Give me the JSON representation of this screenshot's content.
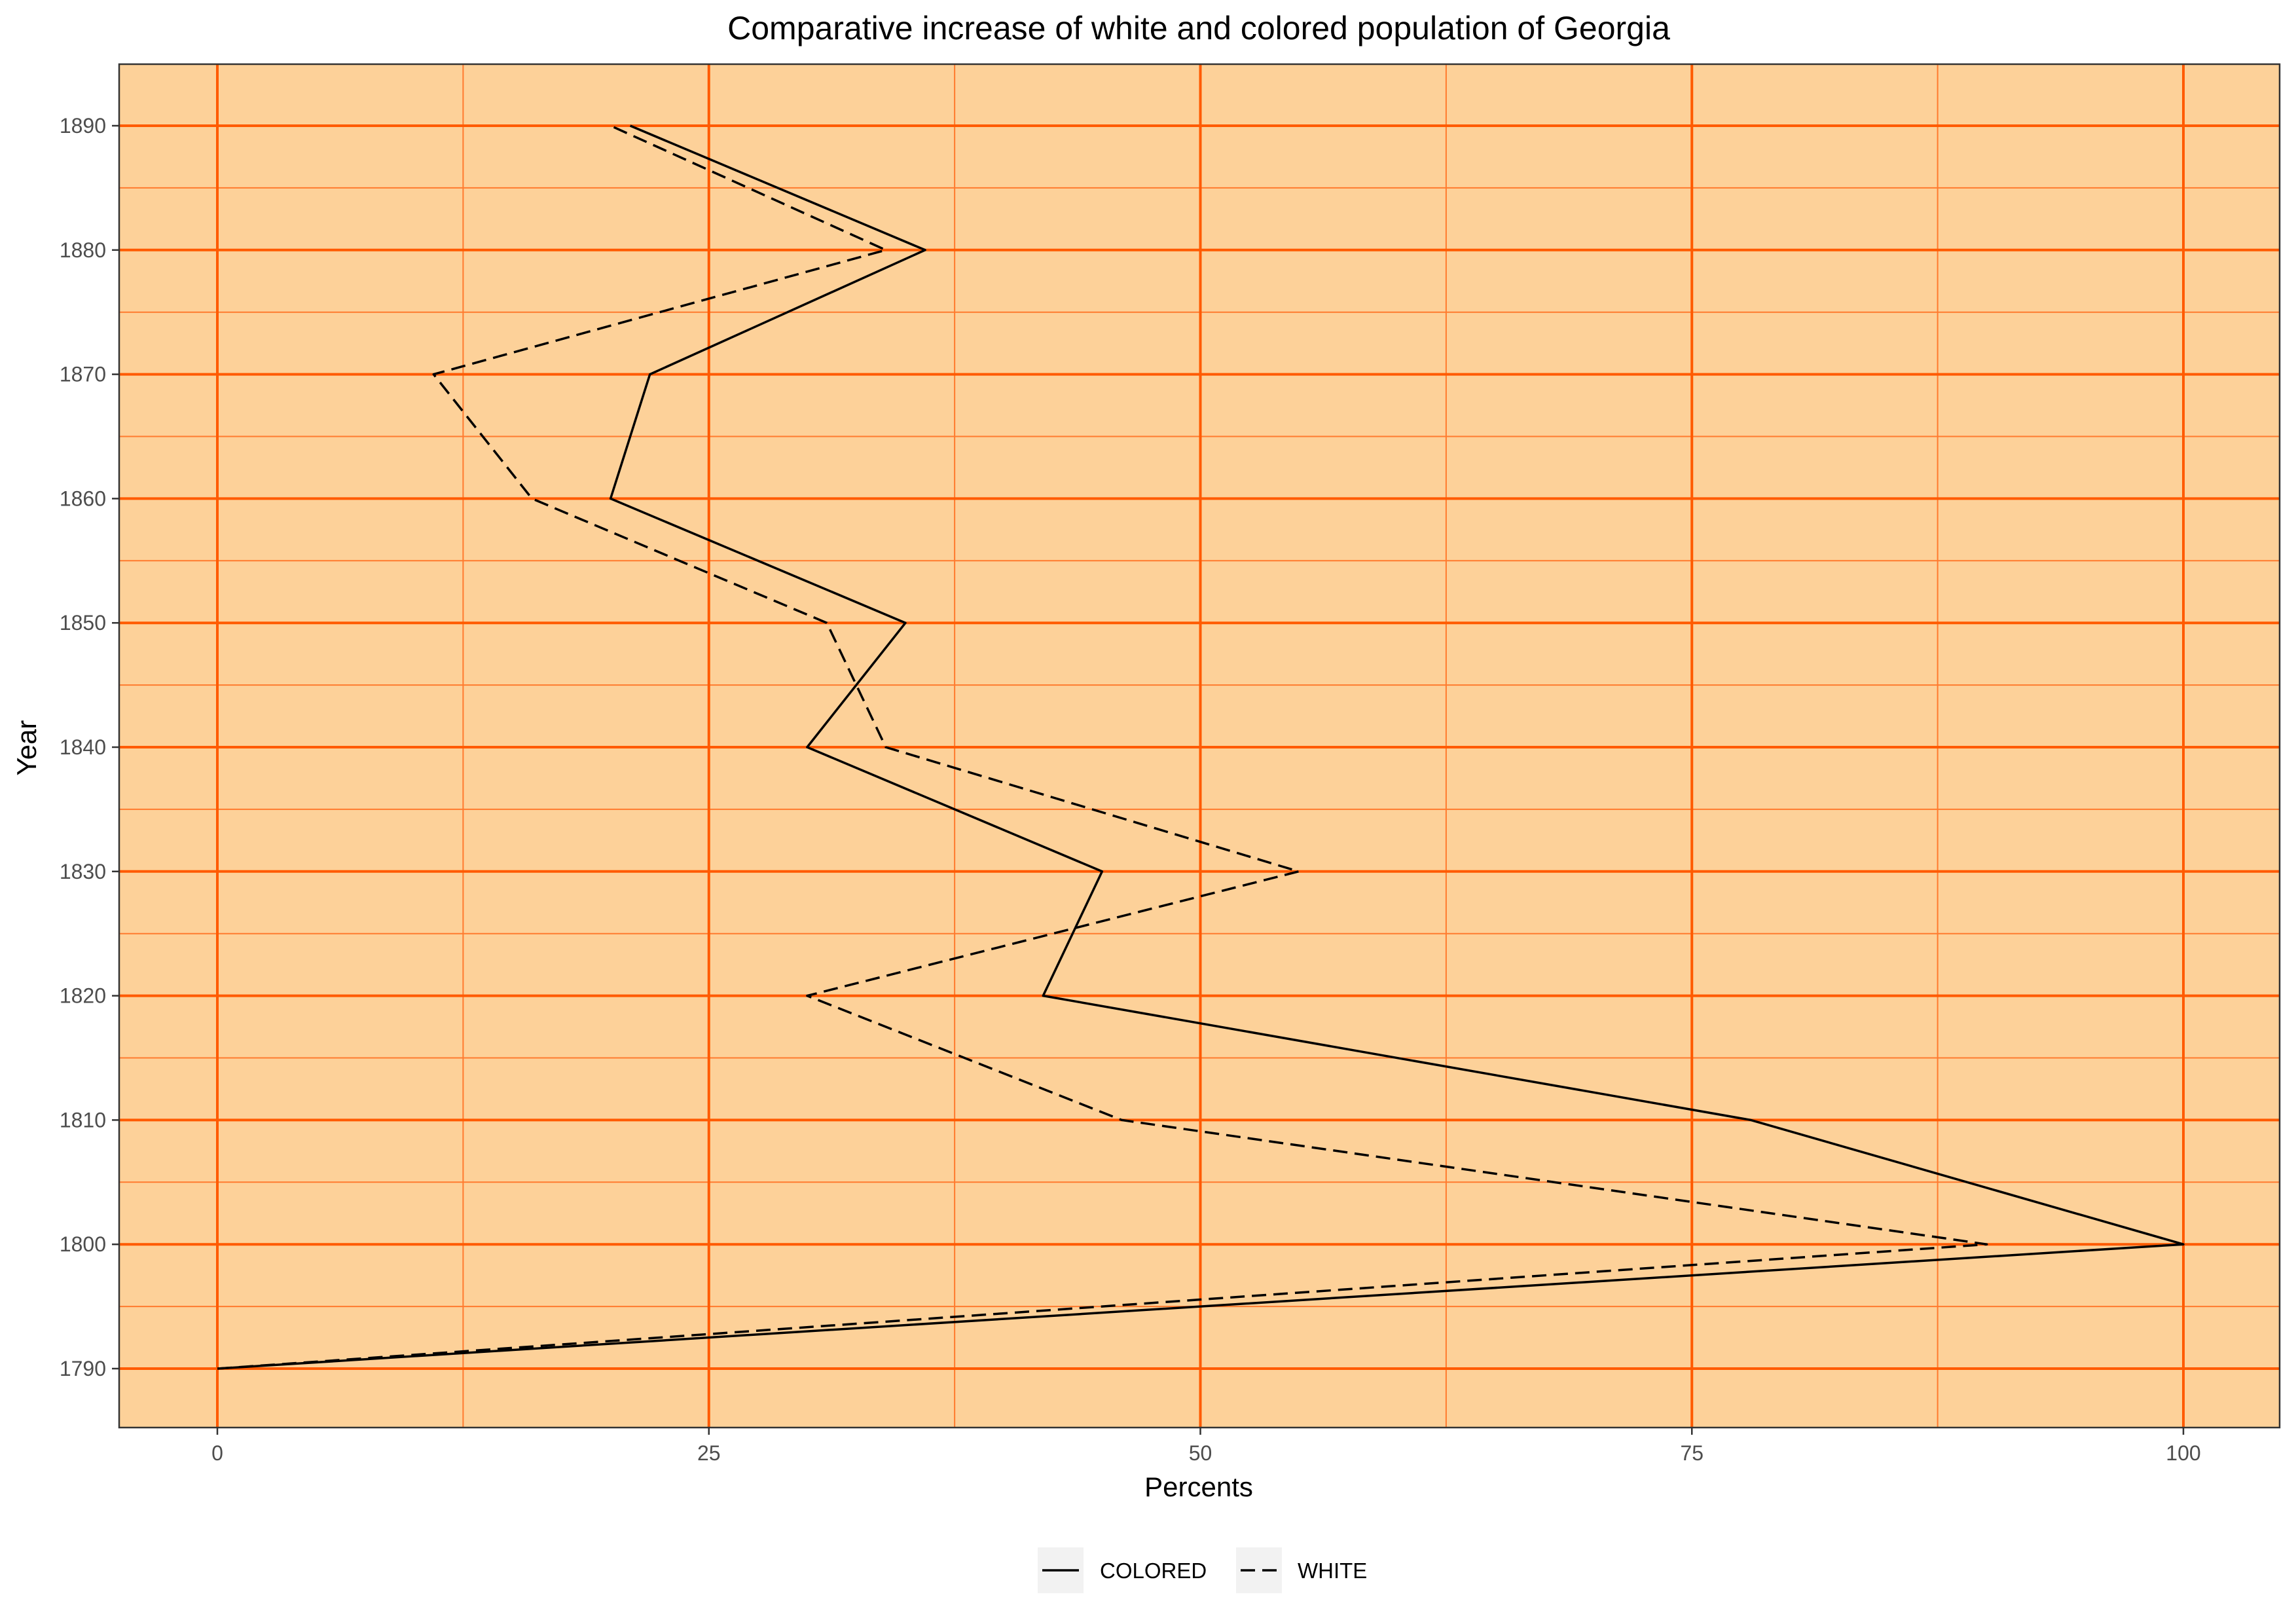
{
  "chart_data": {
    "type": "line",
    "title": "Comparative increase of white and colored population of Georgia",
    "xlabel": "Percents",
    "ylabel": "Year",
    "xlim": [
      -5,
      105
    ],
    "ylim": [
      1785,
      1895
    ],
    "x_ticks": [
      0,
      25,
      50,
      75,
      100
    ],
    "y_ticks": [
      1790,
      1800,
      1810,
      1820,
      1830,
      1840,
      1850,
      1860,
      1870,
      1880,
      1890
    ],
    "grid": true,
    "legend_position": "bottom",
    "colors": {
      "panel_background": "#FDD199",
      "grid_major": "#FF5A00",
      "grid_minor": "#FF7A2E",
      "line": "#000000",
      "legend_key_background": "#F2F2F2"
    },
    "series": [
      {
        "name": "COLORED",
        "line_style": "solid",
        "points": [
          {
            "year": 1790,
            "percent": 0
          },
          {
            "year": 1800,
            "percent": 100
          },
          {
            "year": 1810,
            "percent": 78
          },
          {
            "year": 1820,
            "percent": 42
          },
          {
            "year": 1830,
            "percent": 45
          },
          {
            "year": 1840,
            "percent": 30
          },
          {
            "year": 1850,
            "percent": 35
          },
          {
            "year": 1860,
            "percent": 20
          },
          {
            "year": 1870,
            "percent": 22
          },
          {
            "year": 1880,
            "percent": 36
          },
          {
            "year": 1890,
            "percent": 21
          }
        ]
      },
      {
        "name": "WHITE",
        "line_style": "dashed",
        "points": [
          {
            "year": 1790,
            "percent": 0
          },
          {
            "year": 1800,
            "percent": 90
          },
          {
            "year": 1810,
            "percent": 46
          },
          {
            "year": 1820,
            "percent": 30
          },
          {
            "year": 1830,
            "percent": 55
          },
          {
            "year": 1840,
            "percent": 34
          },
          {
            "year": 1850,
            "percent": 31
          },
          {
            "year": 1860,
            "percent": 16
          },
          {
            "year": 1870,
            "percent": 11
          },
          {
            "year": 1880,
            "percent": 34
          },
          {
            "year": 1890,
            "percent": 20
          }
        ]
      }
    ]
  }
}
